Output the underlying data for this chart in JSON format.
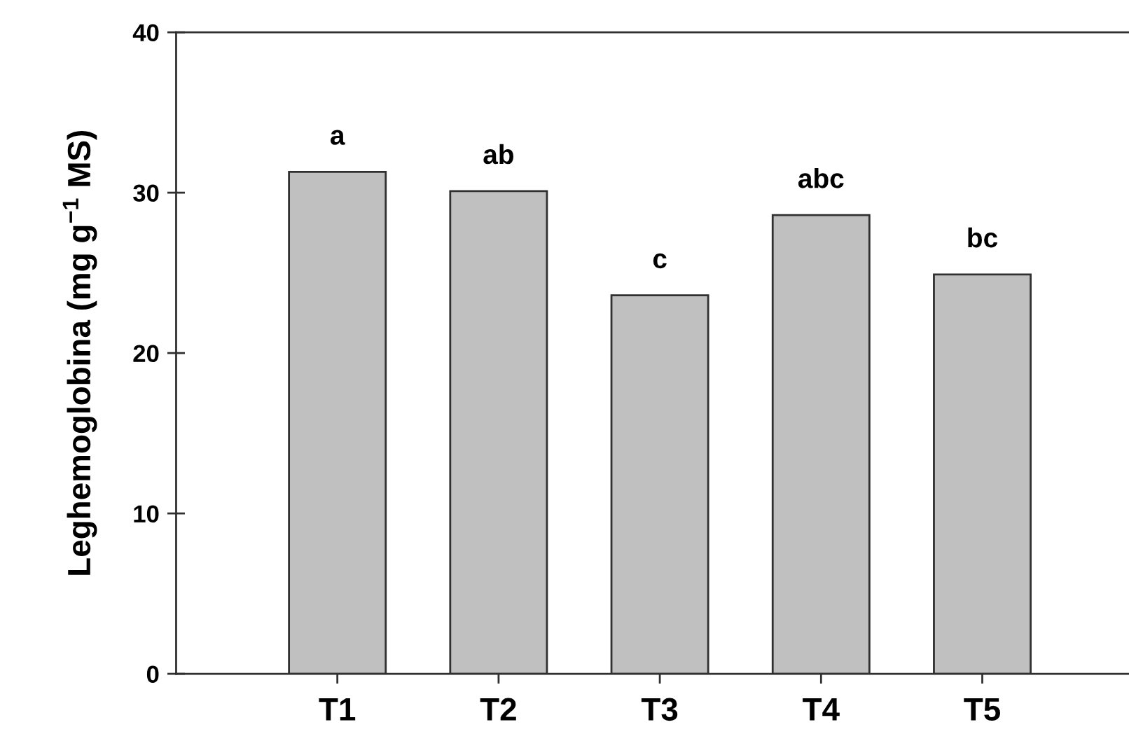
{
  "chart_data": {
    "type": "bar",
    "ylabel": "Leghemoglobina (mg g$^{−1}$ MS)",
    "categories": [
      "T1",
      "T2",
      "T3",
      "T4",
      "T5"
    ],
    "values": [
      31.3,
      30.1,
      23.6,
      28.6,
      24.9
    ],
    "color": "#c0c0c0",
    "ylim": [
      0,
      40
    ],
    "yticks": [
      0,
      10,
      20,
      30,
      40
    ],
    "annotations": [
      {
        "text": "a",
        "x": "T1",
        "y": 31.3
      },
      {
        "text": "ab",
        "x": "T2",
        "y": 30.1
      },
      {
        "text": "c",
        "x": "T3",
        "y": 23.6
      },
      {
        "text": "abc",
        "x": "T4",
        "y": 28.6
      },
      {
        "text": "bc",
        "x": "T5",
        "y": 24.9
      }
    ]
  }
}
